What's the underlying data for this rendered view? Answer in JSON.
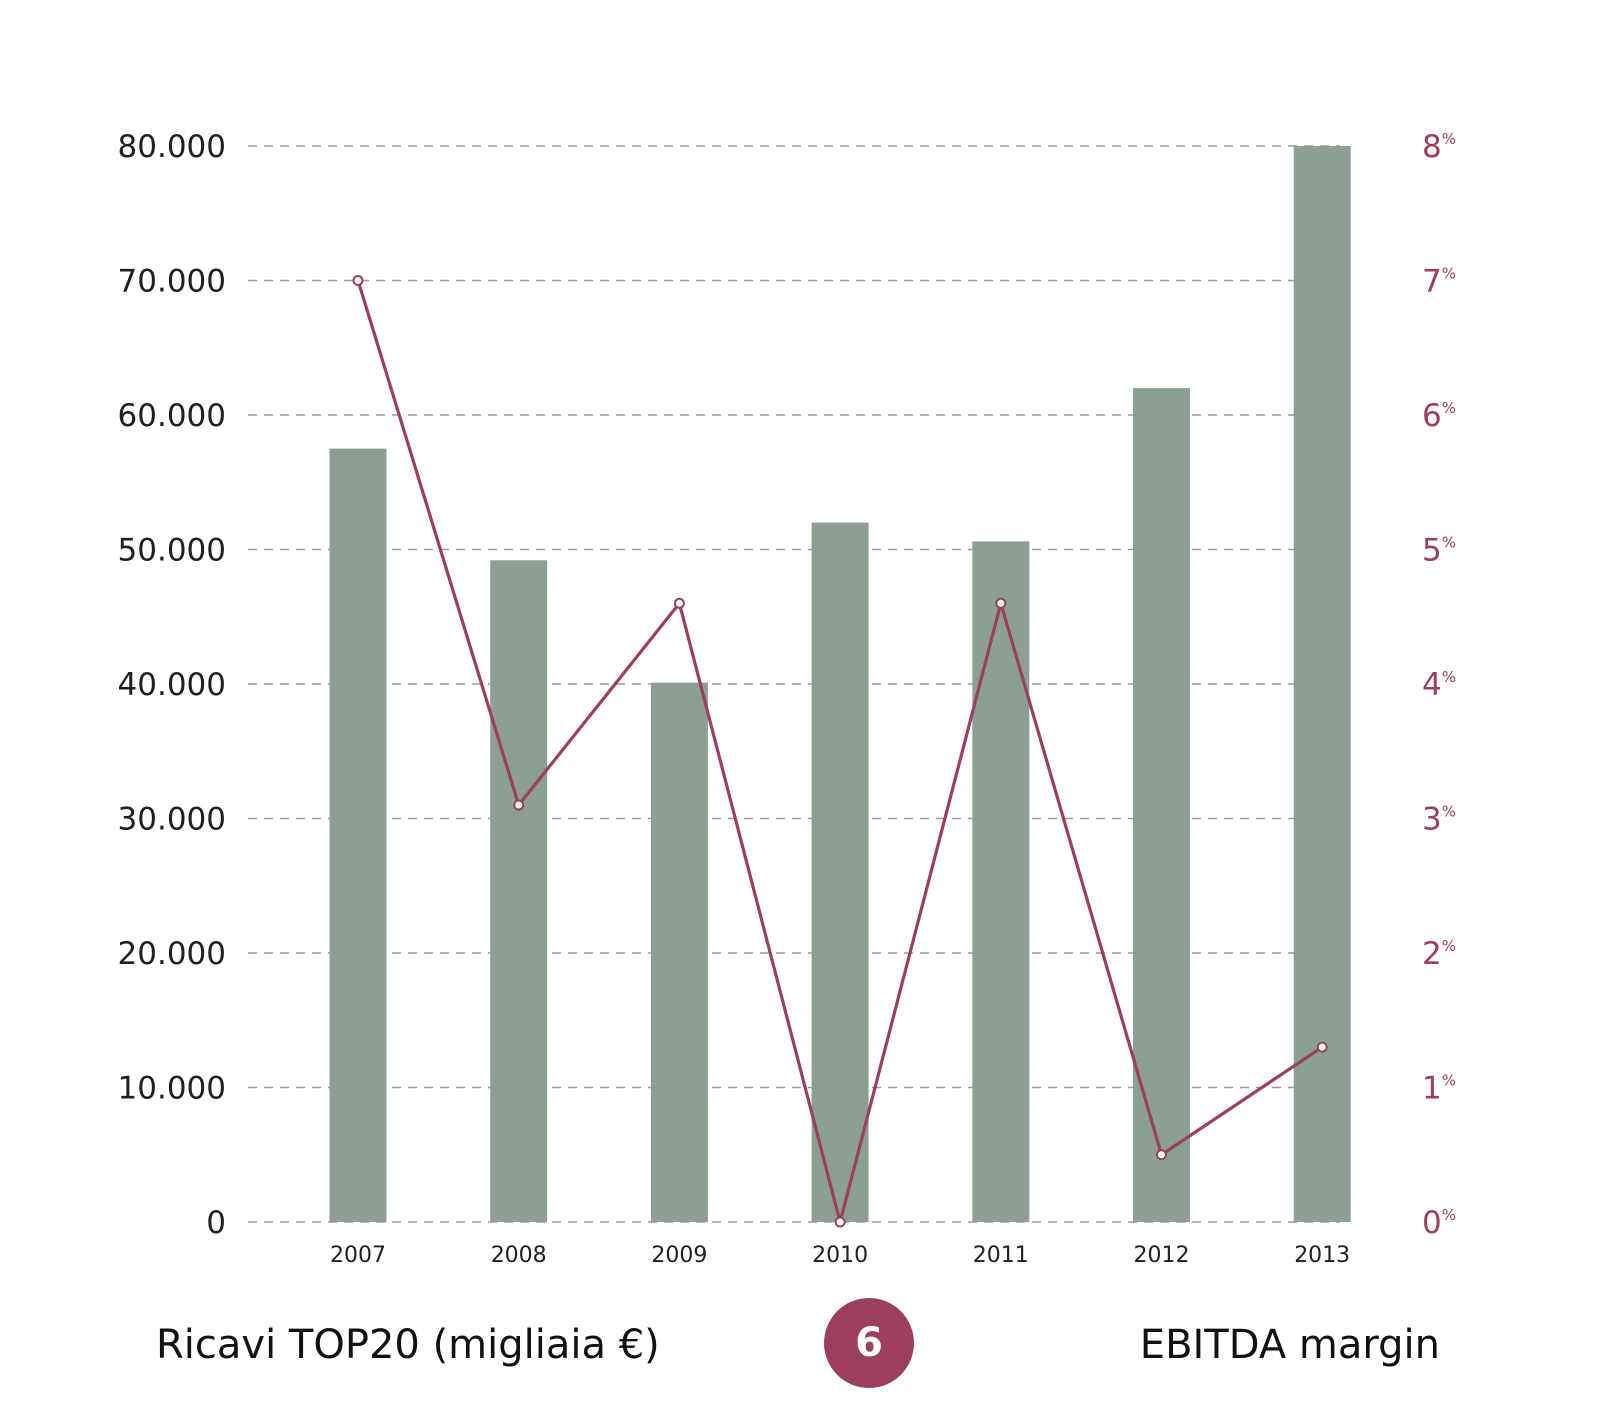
{
  "colors": {
    "bars": "#8c9f93",
    "line": "#9b3f5c",
    "grid": "#9a9a9a",
    "badge": "#9b3f5c",
    "text": "#1f1f1f"
  },
  "footer": {
    "left_label": "Ricavi TOP20 (migliaia €)",
    "badge_number": "6",
    "right_label": "EBITDA margin"
  },
  "chart_data": {
    "type": "bar",
    "categories": [
      "2007",
      "2008",
      "2009",
      "2010",
      "2011",
      "2012",
      "2013"
    ],
    "series": [
      {
        "name": "Ricavi TOP20 (migliaia €)",
        "type": "bar",
        "axis": "left",
        "values": [
          57500,
          49200,
          40100,
          52000,
          50600,
          62000,
          80000
        ]
      },
      {
        "name": "EBITDA margin",
        "type": "line",
        "axis": "right",
        "values": [
          7.0,
          3.1,
          4.6,
          0.0,
          4.6,
          0.5,
          1.3
        ]
      }
    ],
    "left_axis": {
      "ylim": [
        0,
        80000
      ],
      "ticks": [
        0,
        10000,
        20000,
        30000,
        40000,
        50000,
        60000,
        70000,
        80000
      ],
      "tick_labels": [
        "0",
        "10.000",
        "20.000",
        "30.000",
        "40.000",
        "50.000",
        "60.000",
        "70.000",
        "80.000"
      ]
    },
    "right_axis": {
      "ylim": [
        0,
        8
      ],
      "ticks": [
        0,
        1,
        2,
        3,
        4,
        5,
        6,
        7,
        8
      ],
      "tick_labels": [
        "0",
        "1",
        "2",
        "3",
        "4",
        "5",
        "6",
        "7",
        "8"
      ],
      "tick_suffix": "%"
    },
    "grid": true,
    "grid_style": "dashed"
  }
}
